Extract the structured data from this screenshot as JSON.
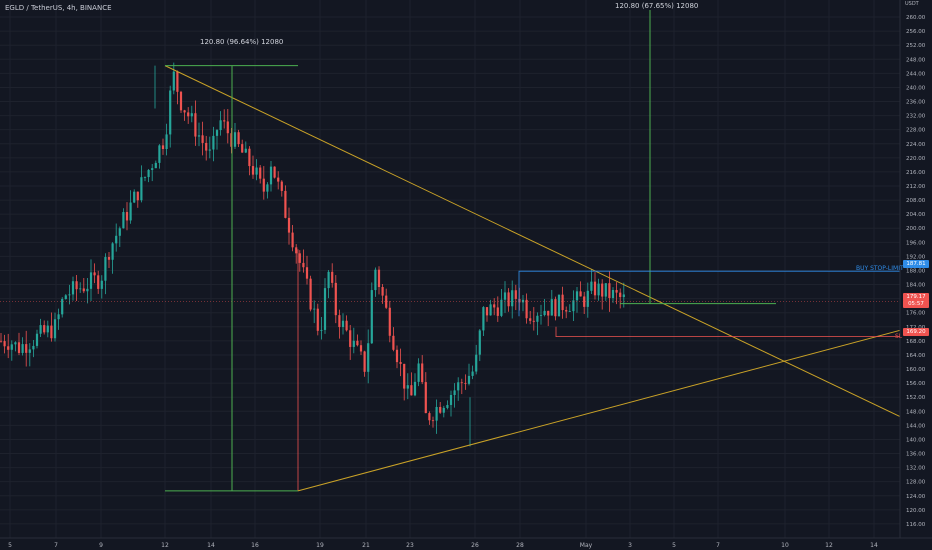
{
  "chart_title": "EGLD / TetherUS, 4h, BINANCE",
  "axis_unit": "USDT",
  "colors": {
    "background": "#131722",
    "up": "#26a69a",
    "down": "#ef5350",
    "trendline": "#c9a227",
    "measure": "#4caf50",
    "buy_line": "#2f8ce8",
    "stop_line": "#ef5350"
  },
  "measurements": [
    {
      "text": "120.80 (96.64%) 12080"
    },
    {
      "text": "120.80 (67.65%) 12080"
    }
  ],
  "orders": {
    "buy_label": "BUY STOP-LIMIT",
    "buy_price": "187.81",
    "current_price": "179.17",
    "current_price_2": "05:57",
    "sl_label": "SL",
    "sl_price": "169.20"
  },
  "chart_data": {
    "type": "candlestick",
    "title": "EGLD / TetherUS, 4h, BINANCE",
    "y_unit": "USDT",
    "y_ticks": [
      "260.00",
      "256.00",
      "252.00",
      "248.00",
      "244.00",
      "240.00",
      "236.00",
      "232.00",
      "228.00",
      "224.00",
      "220.00",
      "216.00",
      "212.00",
      "208.00",
      "204.00",
      "200.00",
      "196.00",
      "192.00",
      "188.00",
      "184.00",
      "180.00",
      "176.00",
      "172.00",
      "168.00",
      "164.00",
      "160.00",
      "156.00",
      "152.00",
      "148.00",
      "144.00",
      "140.00",
      "136.00",
      "132.00",
      "128.00",
      "124.00",
      "120.00",
      "116.00"
    ],
    "x_ticks": [
      "5",
      "7",
      "9",
      "12",
      "14",
      "16",
      "19",
      "21",
      "23",
      "26",
      "28",
      "May",
      "3",
      "5",
      "7",
      "10",
      "12",
      "14"
    ],
    "ylim": [
      112,
      262
    ],
    "grid": true,
    "price_path": [
      [
        "5",
        168
      ],
      [
        "5",
        166
      ],
      [
        "7",
        172
      ],
      [
        "7",
        181
      ],
      [
        "9",
        186
      ],
      [
        "9",
        194
      ],
      [
        "12",
        226
      ],
      [
        "12",
        244
      ],
      [
        "12",
        236
      ],
      [
        "14",
        220
      ],
      [
        "14",
        231
      ],
      [
        "16",
        216
      ],
      [
        "16",
        210
      ],
      [
        "16",
        219
      ],
      [
        "19",
        170
      ],
      [
        "19",
        188
      ],
      [
        "19",
        176
      ],
      [
        "21",
        160
      ],
      [
        "21",
        190
      ],
      [
        "23",
        150
      ],
      [
        "23",
        162
      ],
      [
        "23",
        146
      ],
      [
        "26",
        160
      ],
      [
        "26",
        176
      ],
      [
        "28",
        181
      ],
      [
        "28",
        176
      ],
      [
        "May",
        180
      ],
      [
        "May",
        183
      ],
      [
        "3",
        179
      ]
    ],
    "low_point": 125.4,
    "high_point": 246.2
  }
}
